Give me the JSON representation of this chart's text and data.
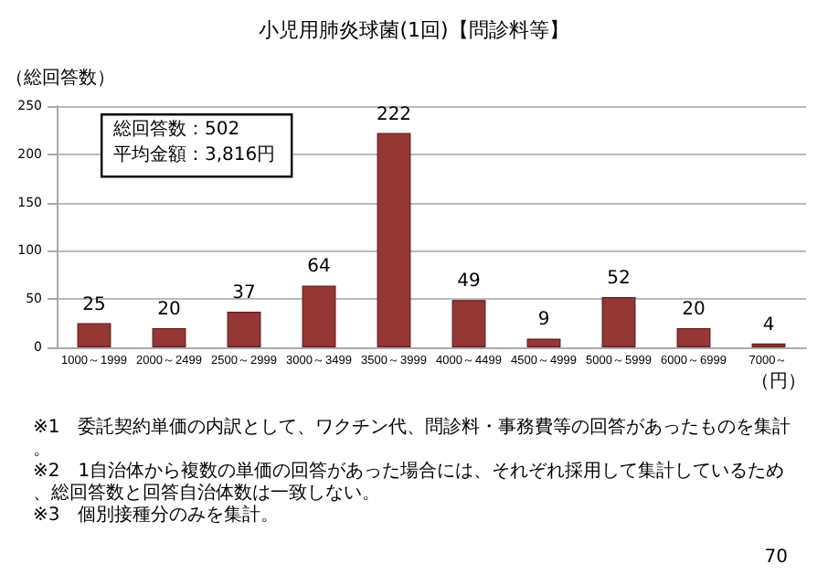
{
  "chart_data": {
    "type": "bar",
    "title": "小児用肺炎球菌(1回)【問診料等】",
    "ylabel": "（総回答数）",
    "xlabel": "（円）",
    "categories": [
      "1000～1999",
      "2000～2499",
      "2500～2999",
      "3000～3499",
      "3500～3999",
      "4000～4499",
      "4500～4999",
      "5000～5999",
      "6000～6999",
      "7000～"
    ],
    "values": [
      25,
      20,
      37,
      64,
      222,
      49,
      9,
      52,
      20,
      4
    ],
    "color": "#953735",
    "ylim": [
      0,
      250
    ],
    "yticks": [
      0,
      50,
      100,
      150,
      200,
      250
    ],
    "grid": "y",
    "data_labels": true,
    "annotations": [
      "総回答数：502",
      "平均金額：3,816円",
      "※1　委託契約単価の内訳として、ワクチン代、問診料・事務費等の回答があったものを集計。",
      "※2　1自治体から複数の単価の回答があった場合には、それぞれ採用して集計しているため、総回答数と回答自治体数は一致しない。",
      "※3　個別接種分のみを集計。",
      "70"
    ]
  }
}
